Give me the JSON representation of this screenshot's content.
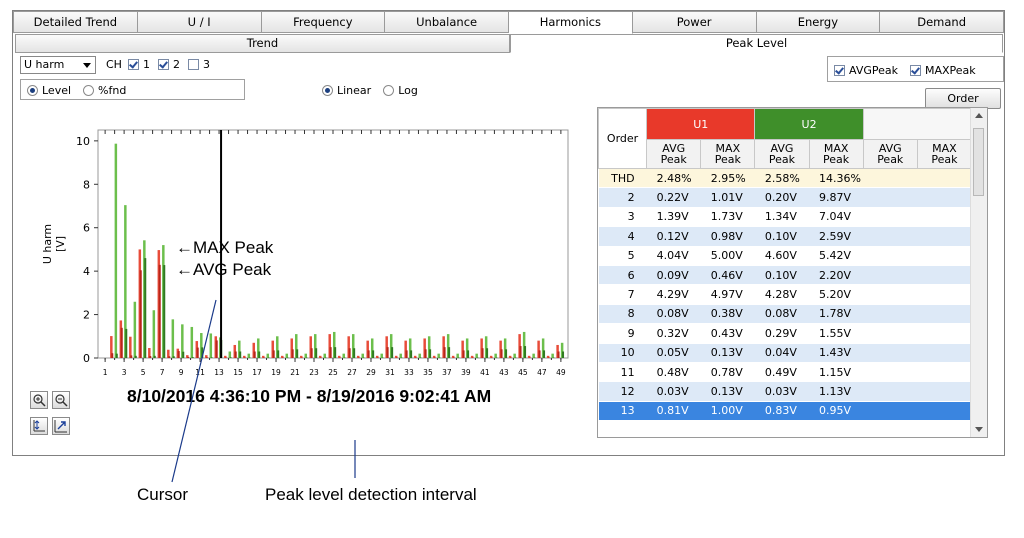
{
  "tabs": [
    "Detailed Trend",
    "U / I",
    "Frequency",
    "Unbalance",
    "Harmonics",
    "Power",
    "Energy",
    "Demand"
  ],
  "active_tab": "Harmonics",
  "subtabs": {
    "trend": "Trend",
    "peak": "Peak Level"
  },
  "controls": {
    "measure_select": "U harm",
    "ch_label": "CH",
    "channels": [
      {
        "label": "1",
        "checked": true
      },
      {
        "label": "2",
        "checked": true
      },
      {
        "label": "3",
        "checked": false
      }
    ],
    "level_label": "Level",
    "fnd_label": "%fnd",
    "linear_label": "Linear",
    "log_label": "Log",
    "avg_peak_label": "AVGPeak",
    "max_peak_label": "MAXPeak",
    "order_button": "Order"
  },
  "chart_data": {
    "type": "bar",
    "ylabel": "U harm\n[V]",
    "ylim": [
      0,
      10.5
    ],
    "yticks": [
      0,
      2,
      4,
      6,
      8,
      10
    ],
    "xticks": [
      1,
      3,
      5,
      7,
      9,
      11,
      13,
      15,
      17,
      19,
      21,
      23,
      25,
      27,
      29,
      31,
      33,
      35,
      37,
      39,
      41,
      43,
      45,
      47,
      49
    ],
    "cursor_order": 13,
    "series": [
      {
        "name": "U1 AVG Peak",
        "color": "#e03020",
        "values": [
          0.0,
          0.22,
          1.39,
          0.12,
          4.04,
          0.09,
          4.29,
          0.08,
          0.32,
          0.05,
          0.48,
          0.03,
          0.81,
          0.02,
          0.3,
          0.02,
          0.3,
          0.02,
          0.35,
          0.02,
          0.4,
          0.02,
          0.45,
          0.02,
          0.5,
          0.02,
          0.45,
          0.02,
          0.35,
          0.02,
          0.5,
          0.02,
          0.35,
          0.02,
          0.4,
          0.02,
          0.5,
          0.02,
          0.35,
          0.02,
          0.45,
          0.02,
          0.4,
          0.02,
          0.55,
          0.02,
          0.35,
          0.02,
          0.3
        ]
      },
      {
        "name": "U1 MAX Peak",
        "color": "#e03020",
        "values": [
          0.0,
          1.01,
          1.73,
          0.98,
          5.0,
          0.46,
          4.97,
          0.38,
          0.43,
          0.13,
          0.78,
          0.13,
          1.0,
          0.1,
          0.6,
          0.1,
          0.7,
          0.1,
          0.8,
          0.1,
          0.9,
          0.1,
          1.0,
          0.1,
          1.1,
          0.1,
          1.0,
          0.1,
          0.8,
          0.1,
          1.0,
          0.1,
          0.8,
          0.1,
          0.9,
          0.1,
          1.0,
          0.1,
          0.8,
          0.1,
          0.9,
          0.1,
          0.8,
          0.1,
          1.1,
          0.1,
          0.8,
          0.1,
          0.6
        ]
      },
      {
        "name": "U2 AVG Peak",
        "color": "#3a8a2a",
        "values": [
          0.0,
          0.2,
          1.34,
          0.1,
          4.6,
          0.1,
          4.28,
          0.08,
          0.29,
          0.04,
          0.49,
          0.03,
          0.83,
          0.03,
          0.3,
          0.02,
          0.3,
          0.02,
          0.35,
          0.02,
          0.4,
          0.02,
          0.45,
          0.02,
          0.5,
          0.02,
          0.45,
          0.02,
          0.35,
          0.02,
          0.5,
          0.02,
          0.35,
          0.02,
          0.4,
          0.02,
          0.5,
          0.02,
          0.35,
          0.02,
          0.45,
          0.02,
          0.4,
          0.02,
          0.55,
          0.02,
          0.35,
          0.02,
          0.3
        ]
      },
      {
        "name": "U2 MAX Peak",
        "color": "#3a8a2a",
        "values": [
          0.0,
          9.87,
          7.04,
          2.59,
          5.42,
          2.2,
          5.2,
          1.78,
          1.55,
          1.43,
          1.15,
          1.13,
          0.95,
          0.3,
          0.8,
          0.2,
          0.9,
          0.2,
          1.0,
          0.2,
          1.1,
          0.2,
          1.1,
          0.2,
          1.2,
          0.2,
          1.1,
          0.2,
          0.9,
          0.2,
          1.1,
          0.2,
          0.9,
          0.2,
          1.0,
          0.2,
          1.1,
          0.2,
          0.9,
          0.2,
          1.0,
          0.2,
          0.9,
          0.2,
          1.2,
          0.2,
          0.9,
          0.2,
          0.7
        ]
      }
    ]
  },
  "chart_labels": {
    "max_peak": "←MAX Peak",
    "avg_peak": "←AVG Peak"
  },
  "interval_text": "8/10/2016 4:36:10 PM - 8/19/2016 9:02:41 AM",
  "table": {
    "order_header": "Order",
    "groups": [
      {
        "label": "U1",
        "color": "#e8392a"
      },
      {
        "label": "U2",
        "color": "#3f8f2a"
      },
      {
        "label": "",
        "color": "#f7f7f7"
      }
    ],
    "sub_headers": [
      "AVG Peak",
      "MAX Peak",
      "AVG Peak",
      "MAX Peak",
      "AVG Peak",
      "MAX Peak"
    ],
    "rows": [
      {
        "order": "THD",
        "v": [
          "2.48%",
          "2.95%",
          "2.58%",
          "14.36%"
        ]
      },
      {
        "order": "2",
        "v": [
          "0.22V",
          "1.01V",
          "0.20V",
          "9.87V"
        ]
      },
      {
        "order": "3",
        "v": [
          "1.39V",
          "1.73V",
          "1.34V",
          "7.04V"
        ]
      },
      {
        "order": "4",
        "v": [
          "0.12V",
          "0.98V",
          "0.10V",
          "2.59V"
        ]
      },
      {
        "order": "5",
        "v": [
          "4.04V",
          "5.00V",
          "4.60V",
          "5.42V"
        ]
      },
      {
        "order": "6",
        "v": [
          "0.09V",
          "0.46V",
          "0.10V",
          "2.20V"
        ]
      },
      {
        "order": "7",
        "v": [
          "4.29V",
          "4.97V",
          "4.28V",
          "5.20V"
        ]
      },
      {
        "order": "8",
        "v": [
          "0.08V",
          "0.38V",
          "0.08V",
          "1.78V"
        ]
      },
      {
        "order": "9",
        "v": [
          "0.32V",
          "0.43V",
          "0.29V",
          "1.55V"
        ]
      },
      {
        "order": "10",
        "v": [
          "0.05V",
          "0.13V",
          "0.04V",
          "1.43V"
        ]
      },
      {
        "order": "11",
        "v": [
          "0.48V",
          "0.78V",
          "0.49V",
          "1.15V"
        ]
      },
      {
        "order": "12",
        "v": [
          "0.03V",
          "0.13V",
          "0.03V",
          "1.13V"
        ]
      },
      {
        "order": "13",
        "v": [
          "0.81V",
          "1.00V",
          "0.83V",
          "0.95V"
        ]
      }
    ]
  },
  "callouts": {
    "cursor": "Cursor",
    "interval": "Peak level detection interval"
  },
  "icons": [
    "zoom-in-icon",
    "zoom-out-icon",
    "vertical-fit-icon",
    "auto-scale-icon"
  ]
}
